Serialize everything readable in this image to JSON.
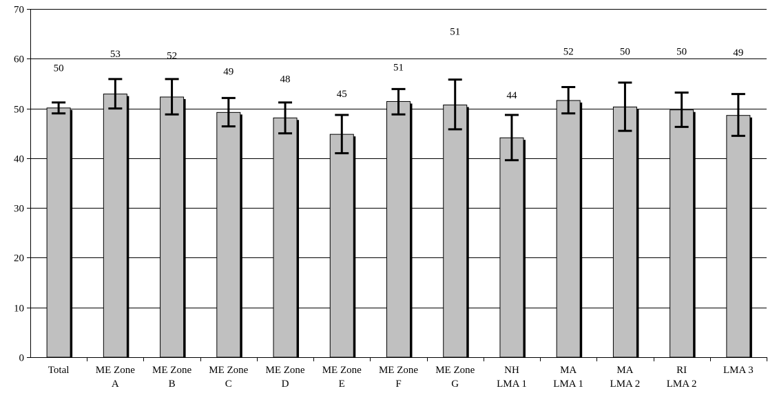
{
  "chart_data": {
    "type": "bar",
    "title": "",
    "xlabel": "",
    "ylabel": "",
    "ylim": [
      0,
      70
    ],
    "yticks": [
      0,
      10,
      20,
      30,
      40,
      50,
      60,
      70
    ],
    "grid": true,
    "legend": "none",
    "bar_color": "#c0c0c0",
    "shadow_color": "#000000",
    "categories": [
      [
        "Total"
      ],
      [
        "ME Zone",
        "A"
      ],
      [
        "ME Zone",
        "B"
      ],
      [
        "ME Zone",
        "C"
      ],
      [
        "ME Zone",
        "D"
      ],
      [
        "ME Zone",
        "E"
      ],
      [
        "ME Zone",
        "F"
      ],
      [
        "ME Zone",
        "G"
      ],
      [
        "NH",
        "LMA 1"
      ],
      [
        "MA",
        "LMA 1"
      ],
      [
        "MA",
        "LMA 2"
      ],
      [
        "RI",
        "LMA 2"
      ],
      [
        "LMA 3"
      ]
    ],
    "values": [
      50.1,
      52.9,
      52.3,
      49.2,
      48.1,
      44.8,
      51.4,
      50.7,
      44.1,
      51.6,
      50.3,
      49.7,
      48.6
    ],
    "error_low": [
      49.0,
      50.0,
      48.8,
      46.4,
      45.0,
      41.0,
      48.8,
      45.8,
      39.6,
      49.0,
      45.5,
      46.3,
      44.5
    ],
    "error_high": [
      51.2,
      55.9,
      55.9,
      52.1,
      51.2,
      48.7,
      53.9,
      55.8,
      48.7,
      54.3,
      55.2,
      53.2,
      52.9
    ],
    "data_labels": [
      "50",
      "53",
      "52",
      "49",
      "48",
      "45",
      "51",
      "51",
      "44",
      "52",
      "50",
      "50",
      "49"
    ],
    "data_label_y": [
      57.5,
      60.3,
      60.0,
      56.8,
      55.3,
      52.3,
      57.6,
      64.8,
      52.0,
      60.8,
      60.8,
      60.8,
      60.6
    ]
  }
}
